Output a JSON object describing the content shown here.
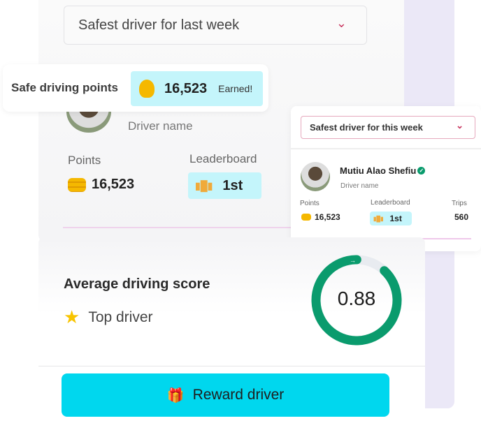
{
  "main_card": {
    "dropdown_value": "Safest driver for last week",
    "driver_name_label": "Driver name",
    "points_label": "Points",
    "points_value": "16,523",
    "leaderboard_label": "Leaderboard",
    "leaderboard_value": "1st"
  },
  "points_pill": {
    "label": "Safe driving points",
    "value": "16,523",
    "status": "Earned!"
  },
  "weekly_card": {
    "dropdown_value": "Safest driver for this week",
    "driver_name": "Mutiu Alao Shefiu",
    "verified": true,
    "driver_name_label": "Driver name",
    "points_label": "Points",
    "points_value": "16,523",
    "leaderboard_label": "Leaderboard",
    "leaderboard_value": "1st",
    "trips_label": "Trips",
    "trips_value": "560"
  },
  "score_card": {
    "title": "Average driving score",
    "badge_label": "Top driver",
    "score": "0.88",
    "score_fraction": 0.88
  },
  "reward_button": {
    "label": "Reward driver"
  },
  "colors": {
    "accent": "#00d7ee",
    "ring": "#0a9b6d",
    "ring_track": "#e8ebf0",
    "chevron": "#c8365f",
    "badge_bg": "#c4f5fb"
  }
}
